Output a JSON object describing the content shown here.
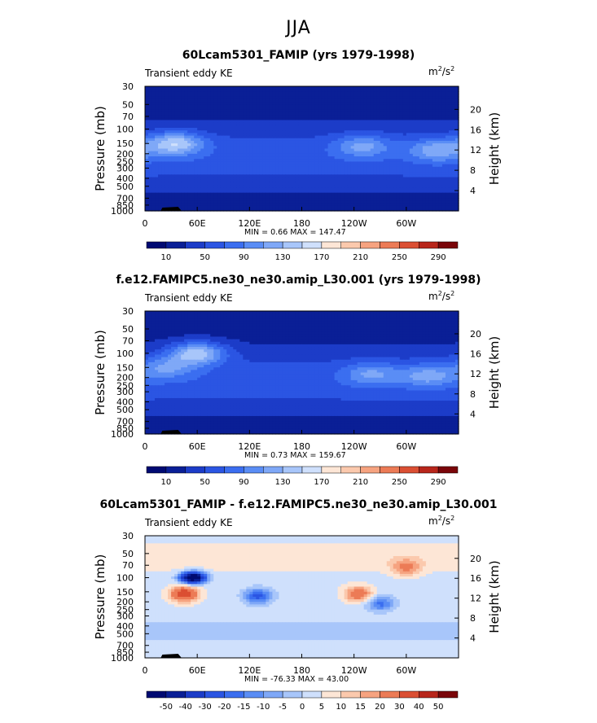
{
  "page_title": "JJA",
  "colors": {
    "ke_levels": [
      "#000a72",
      "#0a1f96",
      "#1c3cc8",
      "#2b55e3",
      "#3b6ef0",
      "#5a8df5",
      "#7fa8f7",
      "#a8c6fa",
      "#cfe0fc",
      "#fde6d6",
      "#fbc9ad",
      "#f6a380",
      "#ec7b56",
      "#db4f33",
      "#b8261b",
      "#7a0509"
    ],
    "diff_levels": [
      "#000a72",
      "#0a1f96",
      "#1c3cc8",
      "#2b55e3",
      "#3b6ef0",
      "#5a8df5",
      "#7fa8f7",
      "#a8c6fa",
      "#cfe0fc",
      "#fde6d6",
      "#fbc9ad",
      "#f6a380",
      "#ec7b56",
      "#db4f33",
      "#b8261b",
      "#7a0509"
    ]
  },
  "panels": [
    {
      "title": "60Lcam5301_FAMIP (yrs 1979-1998)",
      "left_string": "Transient eddy KE",
      "units_base": "m",
      "units_exp1": "2",
      "units_mid": "/s",
      "units_exp2": "2",
      "minmax": "MIN =    0.66  MAX = 147.47",
      "colorbar_labels": [
        "10",
        "50",
        "90",
        "130",
        "170",
        "210",
        "250",
        "290"
      ]
    },
    {
      "title": "f.e12.FAMIPC5.ne30_ne30.amip_L30.001 (yrs 1979-1998)",
      "left_string": "Transient eddy KE",
      "units_base": "m",
      "units_exp1": "2",
      "units_mid": "/s",
      "units_exp2": "2",
      "minmax": "MIN =    0.73  MAX = 159.67",
      "colorbar_labels": [
        "10",
        "50",
        "90",
        "130",
        "170",
        "210",
        "250",
        "290"
      ]
    },
    {
      "title": "60Lcam5301_FAMIP - f.e12.FAMIPC5.ne30_ne30.amip_L30.001",
      "left_string": "Transient eddy KE",
      "units_base": "m",
      "units_exp1": "2",
      "units_mid": "/s",
      "units_exp2": "2",
      "minmax": "MIN = -76.33  MAX =   43.00",
      "colorbar_labels": [
        "-50",
        "-40",
        "-30",
        "-20",
        "-15",
        "-10",
        "-5",
        "0",
        "5",
        "10",
        "15",
        "20",
        "30",
        "40",
        "50"
      ]
    }
  ],
  "chart_data": [
    {
      "type": "heatmap",
      "title": "60Lcam5301_FAMIP (yrs 1979-1998)",
      "subtitle": "Transient eddy KE",
      "ylabel": "Pressure (mb)",
      "y2label": "Height (km)",
      "x_ticks": [
        "0",
        "60E",
        "120E",
        "180",
        "120W",
        "60W"
      ],
      "y_ticks": [
        "30",
        "50",
        "70",
        "100",
        "150",
        "200",
        "250",
        "300",
        "400",
        "500",
        "700",
        "850",
        "1000"
      ],
      "y2_ticks": [
        "20",
        "16",
        "12",
        "8",
        "4"
      ],
      "ylim": [
        1000,
        30
      ],
      "y_scale": "log",
      "values_max": 147.47,
      "values_min": 0.66,
      "jets": [
        {
          "lon": 35,
          "p": 150,
          "value": 150
        },
        {
          "lon": 250,
          "p": 160,
          "value": 115
        },
        {
          "lon": 335,
          "p": 180,
          "value": 120
        }
      ]
    },
    {
      "type": "heatmap",
      "title": "f.e12.FAMIPC5.ne30_ne30.amip_L30.001 (yrs 1979-1998)",
      "subtitle": "Transient eddy KE",
      "ylabel": "Pressure (mb)",
      "y2label": "Height (km)",
      "x_ticks": [
        "0",
        "60E",
        "120E",
        "180",
        "120W",
        "60W"
      ],
      "y_ticks": [
        "30",
        "50",
        "70",
        "100",
        "150",
        "200",
        "250",
        "300",
        "400",
        "500",
        "700",
        "850",
        "1000"
      ],
      "y2_ticks": [
        "20",
        "16",
        "12",
        "8",
        "4"
      ],
      "ylim": [
        1000,
        30
      ],
      "y_scale": "log",
      "values_max": 159.67,
      "values_min": 0.73,
      "jets": [
        {
          "lon": 60,
          "p": 100,
          "value": 160
        },
        {
          "lon": 25,
          "p": 150,
          "value": 110
        },
        {
          "lon": 260,
          "p": 180,
          "value": 110
        },
        {
          "lon": 325,
          "p": 190,
          "value": 115
        }
      ]
    },
    {
      "type": "heatmap",
      "title": "60Lcam5301_FAMIP - f.e12.FAMIPC5.ne30_ne30.amip_L30.001",
      "subtitle": "Transient eddy KE",
      "ylabel": "Pressure (mb)",
      "y2label": "Height (km)",
      "x_ticks": [
        "0",
        "60E",
        "120E",
        "180",
        "120W",
        "60W"
      ],
      "y_ticks": [
        "30",
        "50",
        "70",
        "100",
        "150",
        "200",
        "250",
        "300",
        "400",
        "500",
        "700",
        "850",
        "1000"
      ],
      "y2_ticks": [
        "20",
        "16",
        "12",
        "8",
        "4"
      ],
      "ylim": [
        1000,
        30
      ],
      "y_scale": "log",
      "values_max": 43.0,
      "values_min": -76.33,
      "features": [
        {
          "lon": 55,
          "p": 100,
          "value": -70
        },
        {
          "lon": 45,
          "p": 160,
          "value": 35
        },
        {
          "lon": 130,
          "p": 170,
          "value": -25
        },
        {
          "lon": 245,
          "p": 160,
          "value": 25
        },
        {
          "lon": 270,
          "p": 210,
          "value": -20
        },
        {
          "lon": 300,
          "p": 75,
          "value": 18
        }
      ]
    }
  ]
}
